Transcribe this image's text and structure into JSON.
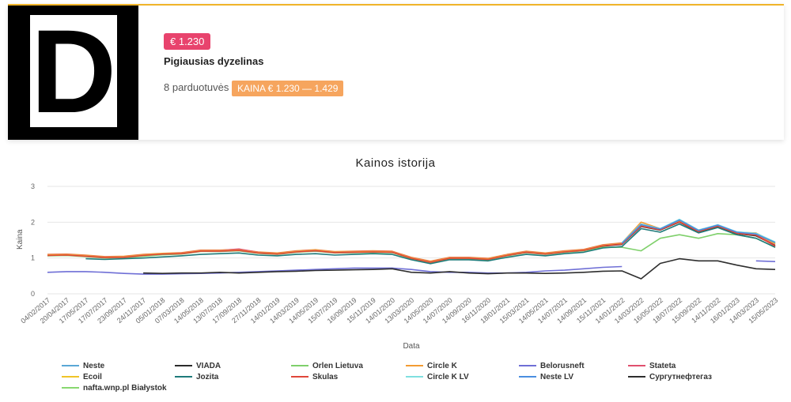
{
  "product": {
    "logo_letter": "D",
    "price_badge": "€ 1.230",
    "name": "Pigiausias dyzelinas",
    "stores": "8 parduotuvės",
    "range_badge": "KAINA € 1.230 — 1.429",
    "colors": {
      "price_badge": "#e8436d",
      "range_badge": "#f6a55e",
      "accent_bar": "#f0b429"
    }
  },
  "chart_data": {
    "type": "line",
    "title": "Kainos istorija",
    "xlabel": "Data",
    "ylabel": "Kaina",
    "ylim": [
      0,
      3
    ],
    "yticks": [
      "0",
      "1",
      "2",
      "3"
    ],
    "grid": true,
    "legend_position": "bottom",
    "x": [
      "04/02/2017",
      "20/04/2017",
      "17/05/2017",
      "17/07/2017",
      "23/09/2017",
      "24/11/2017",
      "05/01/2018",
      "07/03/2018",
      "14/05/2018",
      "13/07/2018",
      "17/09/2018",
      "27/11/2018",
      "14/01/2019",
      "14/03/2019",
      "14/05/2019",
      "15/07/2019",
      "16/09/2019",
      "15/11/2019",
      "14/01/2020",
      "13/03/2020",
      "14/05/2020",
      "14/07/2020",
      "14/09/2020",
      "16/11/2020",
      "18/01/2021",
      "15/03/2021",
      "14/05/2021",
      "14/07/2021",
      "14/09/2021",
      "15/11/2021",
      "14/01/2022",
      "14/03/2022",
      "16/05/2022",
      "18/07/2022",
      "15/09/2022",
      "14/11/2022",
      "16/01/2023",
      "14/03/2023",
      "15/05/2023"
    ],
    "series": [
      {
        "name": "Neste",
        "color": "#5aa8d6",
        "values": [
          1.08,
          1.09,
          1.06,
          1.02,
          1.03,
          1.08,
          1.12,
          1.13,
          1.2,
          1.2,
          1.22,
          1.15,
          1.12,
          1.18,
          1.21,
          1.16,
          1.17,
          1.18,
          1.17,
          1.0,
          0.89,
          1.0,
          1.0,
          0.97,
          1.08,
          1.17,
          1.12,
          1.18,
          1.22,
          1.35,
          1.4,
          1.9,
          1.8,
          2.05,
          1.75,
          1.9,
          1.7,
          1.65,
          1.4
        ]
      },
      {
        "name": "VIADA",
        "color": "#2b2b2b",
        "values": [
          1.07,
          1.08,
          1.05,
          1.01,
          1.02,
          1.07,
          1.1,
          1.12,
          1.19,
          1.19,
          1.21,
          1.14,
          1.11,
          1.17,
          1.2,
          1.15,
          1.16,
          1.17,
          1.16,
          0.99,
          0.88,
          0.99,
          0.99,
          0.96,
          1.07,
          1.16,
          1.11,
          1.17,
          1.21,
          1.33,
          1.38,
          1.88,
          1.78,
          2.0,
          1.73,
          1.88,
          1.68,
          1.62,
          1.35
        ]
      },
      {
        "name": "Orlen Lietuva",
        "color": "#7fd06b",
        "values": [
          1.06,
          1.07,
          1.04,
          1.0,
          1.01,
          1.05,
          1.09,
          1.11,
          1.18,
          1.18,
          1.2,
          1.13,
          1.1,
          1.16,
          1.19,
          1.14,
          1.15,
          1.16,
          1.15,
          0.98,
          0.87,
          0.98,
          0.98,
          0.95,
          1.06,
          1.15,
          1.1,
          1.16,
          1.2,
          1.3,
          1.3,
          1.2,
          1.55,
          1.65,
          1.55,
          1.68,
          1.65,
          1.55,
          1.3
        ]
      },
      {
        "name": "Circle K",
        "color": "#f39c33",
        "values": [
          1.1,
          1.11,
          1.08,
          1.04,
          1.05,
          1.1,
          1.13,
          1.15,
          1.22,
          1.22,
          1.24,
          1.17,
          1.14,
          1.2,
          1.23,
          1.18,
          1.19,
          1.2,
          1.19,
          1.02,
          0.91,
          1.02,
          1.02,
          0.99,
          1.1,
          1.19,
          1.14,
          1.2,
          1.24,
          1.37,
          1.42,
          2.0,
          1.82,
          2.02,
          1.78,
          1.92,
          1.72,
          1.7,
          1.42
        ]
      },
      {
        "name": "Belorusneft",
        "color": "#6f6fd6",
        "values": [
          0.6,
          0.62,
          0.62,
          0.6,
          0.57,
          0.55,
          0.55,
          0.56,
          0.57,
          0.58,
          0.6,
          0.62,
          0.64,
          0.66,
          0.68,
          0.7,
          0.72,
          0.72,
          0.72,
          0.68,
          0.62,
          0.6,
          0.6,
          0.58,
          0.58,
          0.6,
          0.64,
          0.66,
          0.7,
          0.74,
          0.76,
          null,
          null,
          null,
          null,
          null,
          null,
          0.92,
          0.9
        ]
      },
      {
        "name": "Stateta",
        "color": "#e0506e",
        "values": [
          1.09,
          1.1,
          1.07,
          1.03,
          1.04,
          1.09,
          1.12,
          1.14,
          1.21,
          1.21,
          1.25,
          1.16,
          1.13,
          1.19,
          1.22,
          1.17,
          1.18,
          1.19,
          1.18,
          1.01,
          0.9,
          1.01,
          1.01,
          0.98,
          1.09,
          1.18,
          1.13,
          1.19,
          1.23,
          1.36,
          1.41,
          1.95,
          1.81,
          2.03,
          1.76,
          1.91,
          1.71,
          1.66,
          1.38
        ]
      },
      {
        "name": "Ecoil",
        "color": "#f0c428",
        "values": [
          1.08,
          1.09,
          1.06,
          1.02,
          1.03,
          1.08,
          1.12,
          1.13,
          1.2,
          1.2,
          1.22,
          1.15,
          1.12,
          1.18,
          1.21,
          1.16,
          1.17,
          1.18,
          1.17,
          1.0,
          0.89,
          1.0,
          1.0,
          0.97,
          1.08,
          1.17,
          1.12,
          1.18,
          1.22,
          1.35,
          1.4,
          1.92,
          1.8,
          2.02,
          1.75,
          1.9,
          1.7,
          1.68,
          1.4
        ]
      },
      {
        "name": "Jozita",
        "color": "#1e7a7a",
        "values": [
          null,
          null,
          0.98,
          0.96,
          0.98,
          1.0,
          1.03,
          1.06,
          1.1,
          1.12,
          1.14,
          1.08,
          1.06,
          1.1,
          1.12,
          1.08,
          1.1,
          1.12,
          1.1,
          0.95,
          0.84,
          0.95,
          0.95,
          0.92,
          1.02,
          1.1,
          1.06,
          1.12,
          1.16,
          1.28,
          1.32,
          1.82,
          1.72,
          1.95,
          1.7,
          1.85,
          1.65,
          1.55,
          1.3
        ]
      },
      {
        "name": "Skulas",
        "color": "#e0463a",
        "values": [
          1.07,
          1.08,
          1.05,
          1.01,
          1.02,
          1.07,
          1.11,
          1.12,
          1.19,
          1.19,
          1.21,
          1.14,
          1.11,
          1.17,
          1.2,
          1.15,
          1.16,
          1.17,
          1.16,
          0.99,
          0.88,
          0.99,
          0.99,
          0.96,
          1.07,
          1.16,
          1.11,
          1.17,
          1.21,
          1.34,
          1.39,
          1.89,
          1.79,
          2.01,
          1.74,
          1.89,
          1.69,
          1.64,
          1.33
        ]
      },
      {
        "name": "Circle K LV",
        "color": "#7fe0e0",
        "values": [
          null,
          null,
          null,
          null,
          null,
          null,
          null,
          null,
          null,
          null,
          null,
          null,
          null,
          null,
          null,
          null,
          null,
          null,
          null,
          null,
          null,
          null,
          null,
          null,
          null,
          null,
          null,
          null,
          null,
          null,
          1.42,
          1.95,
          1.82,
          2.08,
          1.78,
          1.93,
          1.73,
          1.69,
          1.45
        ]
      },
      {
        "name": "Neste LV",
        "color": "#4a8ee0",
        "values": [
          null,
          null,
          null,
          null,
          null,
          null,
          null,
          null,
          null,
          null,
          null,
          null,
          null,
          null,
          null,
          null,
          null,
          null,
          null,
          null,
          null,
          null,
          null,
          null,
          null,
          null,
          null,
          null,
          null,
          null,
          1.41,
          1.93,
          1.81,
          2.06,
          1.77,
          1.92,
          1.72,
          1.67,
          1.43
        ]
      },
      {
        "name": "Сургутнефтегаз",
        "color": "#2e2e2e",
        "values": [
          null,
          null,
          null,
          null,
          null,
          0.58,
          0.57,
          0.58,
          0.58,
          0.6,
          0.58,
          0.6,
          0.62,
          0.63,
          0.65,
          0.66,
          0.67,
          0.68,
          0.7,
          0.6,
          0.58,
          0.62,
          0.58,
          0.56,
          0.58,
          0.58,
          0.57,
          0.58,
          0.6,
          0.63,
          0.64,
          0.42,
          0.85,
          0.98,
          0.92,
          0.92,
          0.8,
          0.7,
          0.68
        ]
      },
      {
        "name": "nafta.wnp.pl Białystok",
        "color": "#88d870",
        "values": [
          null,
          null,
          null,
          null,
          null,
          null,
          null,
          null,
          null,
          null,
          null,
          null,
          null,
          null,
          null,
          null,
          null,
          null,
          null,
          null,
          null,
          null,
          null,
          null,
          null,
          null,
          null,
          null,
          null,
          null,
          null,
          null,
          null,
          null,
          null,
          null,
          null,
          null,
          null
        ]
      }
    ]
  }
}
